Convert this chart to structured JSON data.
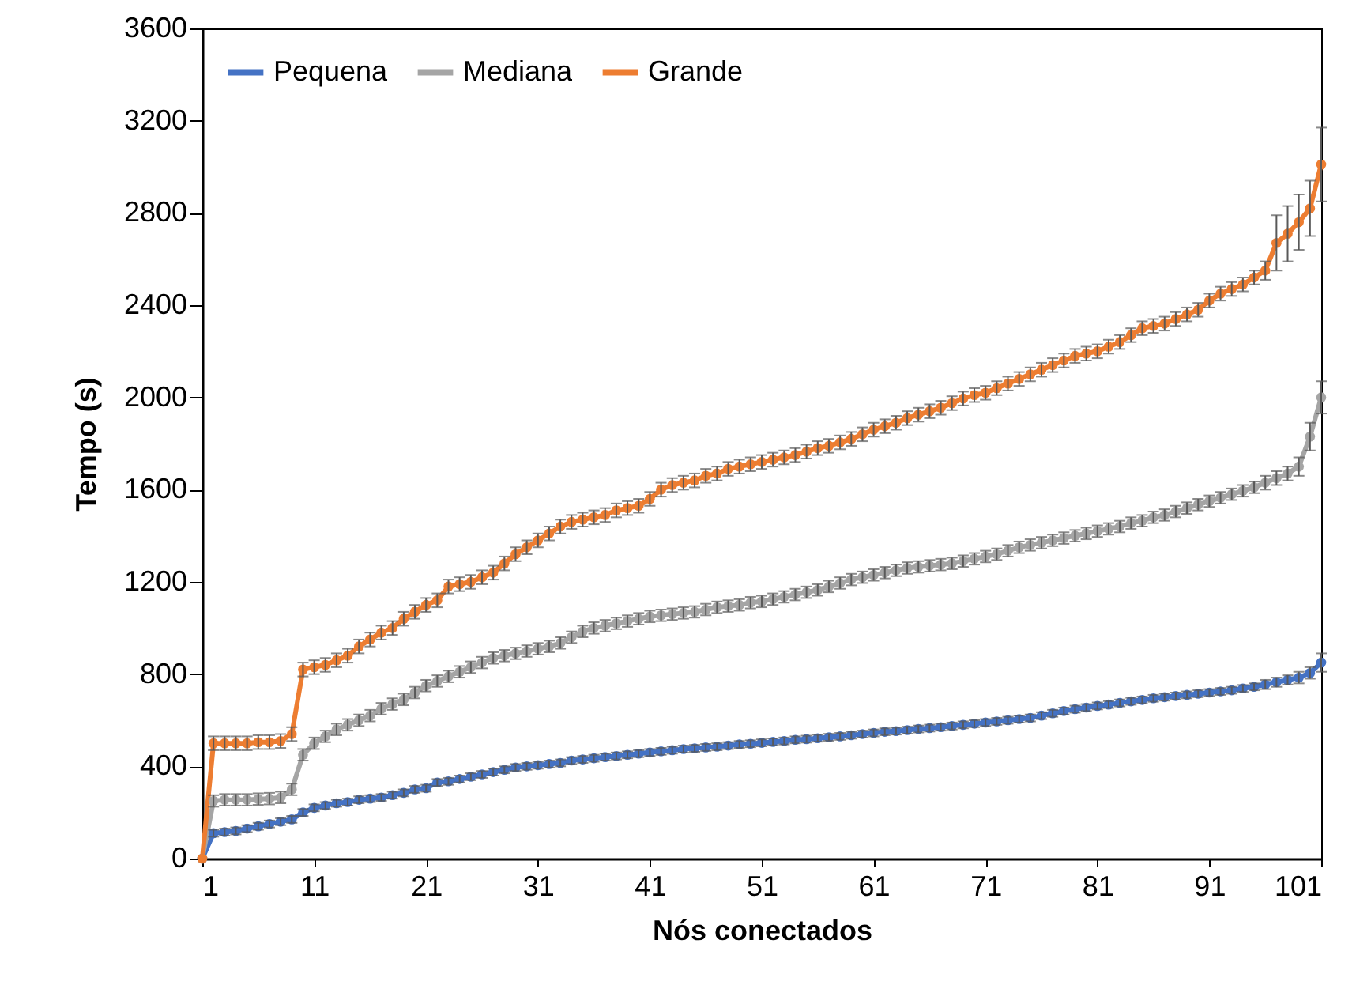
{
  "chart_data": {
    "type": "line",
    "xlabel": "Nós conectados",
    "ylabel": "Tempo (s)",
    "x": [
      1,
      2,
      3,
      4,
      5,
      6,
      7,
      8,
      9,
      10,
      11,
      12,
      13,
      14,
      15,
      16,
      17,
      18,
      19,
      20,
      21,
      22,
      23,
      24,
      25,
      26,
      27,
      28,
      29,
      30,
      31,
      32,
      33,
      34,
      35,
      36,
      37,
      38,
      39,
      40,
      41,
      42,
      43,
      44,
      45,
      46,
      47,
      48,
      49,
      50,
      51,
      52,
      53,
      54,
      55,
      56,
      57,
      58,
      59,
      60,
      61,
      62,
      63,
      64,
      65,
      66,
      67,
      68,
      69,
      70,
      71,
      72,
      73,
      74,
      75,
      76,
      77,
      78,
      79,
      80,
      81,
      82,
      83,
      84,
      85,
      86,
      87,
      88,
      89,
      90,
      91,
      92,
      93,
      94,
      95,
      96,
      97,
      98,
      99,
      100,
      101
    ],
    "xlim": [
      1,
      101
    ],
    "xticks": [
      1,
      11,
      21,
      31,
      41,
      51,
      61,
      71,
      81,
      91,
      101
    ],
    "ylim": [
      0,
      3600
    ],
    "yticks": [
      0,
      400,
      800,
      1200,
      1600,
      2000,
      2400,
      2800,
      3200,
      3600
    ],
    "grid": false,
    "legend": "top left",
    "marker": "circle",
    "line_style": "solid",
    "series": [
      {
        "name": "Pequena",
        "color": "#4472c4",
        "values": [
          0,
          110,
          115,
          120,
          130,
          140,
          150,
          160,
          170,
          200,
          220,
          230,
          240,
          245,
          255,
          260,
          265,
          275,
          285,
          300,
          305,
          330,
          335,
          345,
          355,
          365,
          375,
          385,
          395,
          400,
          405,
          410,
          415,
          425,
          430,
          435,
          440,
          445,
          450,
          455,
          460,
          465,
          470,
          475,
          478,
          482,
          485,
          490,
          495,
          498,
          502,
          506,
          510,
          515,
          518,
          522,
          526,
          530,
          535,
          540,
          545,
          550,
          553,
          557,
          562,
          566,
          570,
          575,
          580,
          585,
          590,
          595,
          600,
          605,
          610,
          620,
          630,
          640,
          648,
          655,
          662,
          668,
          675,
          682,
          688,
          695,
          700,
          705,
          710,
          715,
          720,
          725,
          730,
          738,
          745,
          755,
          765,
          775,
          785,
          805,
          850
        ],
        "errors": [
          null,
          15,
          15,
          15,
          15,
          15,
          15,
          15,
          15,
          15,
          15,
          15,
          15,
          15,
          15,
          15,
          15,
          15,
          15,
          15,
          15,
          15,
          15,
          15,
          15,
          15,
          15,
          15,
          15,
          15,
          15,
          15,
          15,
          15,
          15,
          15,
          15,
          15,
          15,
          15,
          15,
          15,
          15,
          15,
          15,
          15,
          15,
          15,
          15,
          15,
          15,
          15,
          15,
          15,
          15,
          15,
          15,
          15,
          15,
          15,
          15,
          15,
          15,
          15,
          15,
          15,
          15,
          15,
          15,
          15,
          15,
          15,
          15,
          15,
          15,
          15,
          15,
          15,
          15,
          15,
          15,
          15,
          15,
          15,
          15,
          15,
          15,
          15,
          15,
          15,
          15,
          15,
          15,
          15,
          15,
          20,
          20,
          20,
          25,
          25,
          40
        ]
      },
      {
        "name": "Mediana",
        "color": "#a5a5a5",
        "values": [
          0,
          250,
          255,
          255,
          255,
          258,
          260,
          265,
          300,
          450,
          500,
          530,
          560,
          580,
          600,
          620,
          650,
          670,
          690,
          720,
          750,
          770,
          790,
          810,
          830,
          850,
          870,
          880,
          890,
          900,
          910,
          920,
          935,
          960,
          985,
          1000,
          1010,
          1020,
          1030,
          1040,
          1050,
          1055,
          1060,
          1065,
          1070,
          1080,
          1090,
          1095,
          1100,
          1110,
          1115,
          1125,
          1135,
          1145,
          1155,
          1165,
          1180,
          1195,
          1210,
          1220,
          1230,
          1240,
          1250,
          1260,
          1265,
          1270,
          1275,
          1280,
          1290,
          1300,
          1310,
          1320,
          1335,
          1350,
          1360,
          1370,
          1380,
          1390,
          1400,
          1410,
          1420,
          1430,
          1440,
          1455,
          1465,
          1480,
          1490,
          1505,
          1520,
          1535,
          1550,
          1565,
          1580,
          1595,
          1610,
          1630,
          1650,
          1670,
          1700,
          1830,
          2000
        ],
        "errors": [
          null,
          25,
          25,
          25,
          25,
          25,
          25,
          25,
          25,
          25,
          25,
          25,
          25,
          25,
          25,
          25,
          25,
          25,
          25,
          25,
          25,
          25,
          25,
          25,
          25,
          25,
          25,
          25,
          25,
          25,
          25,
          25,
          25,
          25,
          25,
          25,
          25,
          25,
          25,
          25,
          25,
          25,
          25,
          25,
          25,
          25,
          25,
          25,
          25,
          25,
          25,
          25,
          25,
          25,
          25,
          25,
          25,
          25,
          25,
          25,
          25,
          25,
          25,
          25,
          25,
          25,
          25,
          25,
          25,
          25,
          25,
          25,
          25,
          25,
          25,
          25,
          25,
          25,
          25,
          25,
          25,
          25,
          25,
          25,
          25,
          25,
          25,
          25,
          25,
          25,
          25,
          25,
          25,
          25,
          25,
          30,
          30,
          30,
          40,
          60,
          70
        ]
      },
      {
        "name": "Grande",
        "color": "#ed7d31",
        "values": [
          0,
          500,
          500,
          500,
          500,
          505,
          505,
          510,
          540,
          820,
          830,
          840,
          860,
          880,
          920,
          950,
          980,
          1000,
          1040,
          1070,
          1100,
          1120,
          1180,
          1190,
          1200,
          1220,
          1240,
          1280,
          1320,
          1350,
          1380,
          1410,
          1440,
          1460,
          1470,
          1480,
          1490,
          1510,
          1520,
          1530,
          1560,
          1600,
          1620,
          1630,
          1640,
          1660,
          1670,
          1690,
          1700,
          1710,
          1720,
          1730,
          1740,
          1750,
          1765,
          1780,
          1790,
          1805,
          1820,
          1840,
          1860,
          1875,
          1890,
          1910,
          1925,
          1940,
          1955,
          1975,
          1995,
          2010,
          2020,
          2040,
          2060,
          2080,
          2100,
          2120,
          2140,
          2160,
          2180,
          2190,
          2200,
          2220,
          2240,
          2270,
          2300,
          2310,
          2320,
          2340,
          2360,
          2380,
          2420,
          2450,
          2470,
          2490,
          2520,
          2550,
          2670,
          2710,
          2760,
          2820,
          3010
        ],
        "errors": [
          null,
          30,
          30,
          30,
          30,
          30,
          30,
          30,
          30,
          30,
          30,
          30,
          30,
          30,
          30,
          30,
          30,
          30,
          30,
          30,
          30,
          30,
          30,
          30,
          30,
          30,
          30,
          30,
          30,
          30,
          30,
          30,
          30,
          30,
          30,
          30,
          30,
          30,
          30,
          30,
          30,
          30,
          30,
          30,
          30,
          30,
          30,
          30,
          30,
          30,
          30,
          30,
          30,
          30,
          30,
          30,
          30,
          30,
          30,
          30,
          30,
          30,
          30,
          30,
          30,
          30,
          30,
          30,
          30,
          30,
          30,
          30,
          30,
          30,
          30,
          30,
          30,
          30,
          30,
          30,
          30,
          30,
          30,
          30,
          30,
          30,
          30,
          30,
          30,
          30,
          30,
          30,
          30,
          30,
          30,
          40,
          120,
          120,
          120,
          120,
          160
        ]
      }
    ]
  }
}
